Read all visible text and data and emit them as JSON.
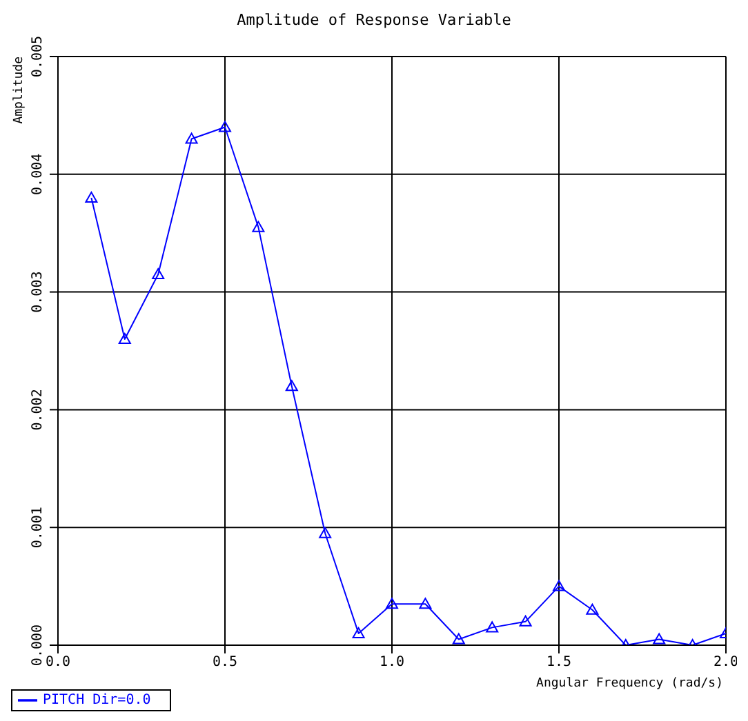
{
  "chart_data": {
    "type": "line",
    "title": "Amplitude of Response Variable",
    "xlabel": "Angular Frequency (rad/s)",
    "ylabel": "Amplitude",
    "x": [
      0.1,
      0.2,
      0.3,
      0.4,
      0.5,
      0.6,
      0.7,
      0.8,
      0.9,
      1.0,
      1.1,
      1.2,
      1.3,
      1.4,
      1.5,
      1.6,
      1.7,
      1.8,
      1.9,
      2.0
    ],
    "series": [
      {
        "name": "PITCH  Dir=0.0",
        "color": "#0000ff",
        "values": [
          0.0038,
          0.0026,
          0.00315,
          0.0043,
          0.0044,
          0.00355,
          0.0022,
          0.00095,
          0.0001,
          0.00035,
          0.00035,
          5e-05,
          0.00015,
          0.0002,
          0.0005,
          0.0003,
          0.0,
          5e-05,
          0.0,
          0.0001
        ]
      }
    ],
    "xlim": [
      0,
      2
    ],
    "xticks": [
      {
        "value": 0,
        "label": "0.0"
      },
      {
        "value": 0.5,
        "label": "0.5"
      },
      {
        "value": 1,
        "label": "1.0"
      },
      {
        "value": 1.5,
        "label": "1.5"
      },
      {
        "value": 2,
        "label": "2.0"
      }
    ],
    "ylim": [
      0,
      0.005
    ],
    "yticks": [
      {
        "value": 0,
        "label": "0.000"
      },
      {
        "value": 0.001,
        "label": "0.001"
      },
      {
        "value": 0.002,
        "label": "0.002"
      },
      {
        "value": 0.003,
        "label": "0.003"
      },
      {
        "value": 0.004,
        "label": "0.004"
      },
      {
        "value": 0.005,
        "label": "0.005"
      }
    ],
    "grid": true,
    "legend": "bottom left",
    "marker": "triangle",
    "line_style": "solid"
  }
}
